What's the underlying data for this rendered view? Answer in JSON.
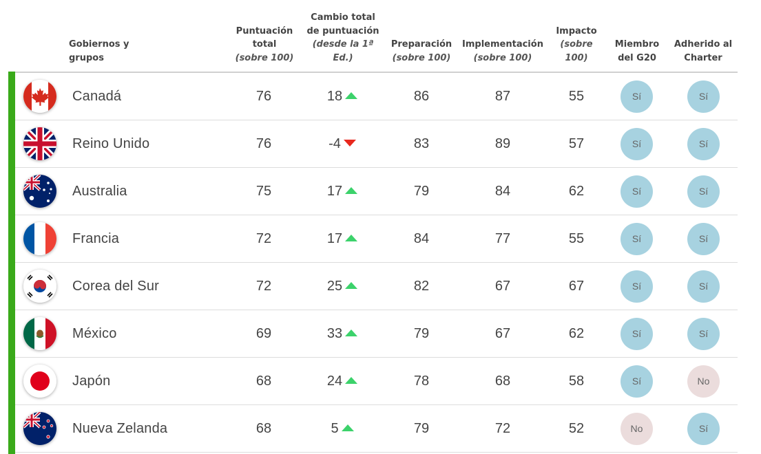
{
  "header": {
    "country": "Gobiernos y grupos",
    "total": [
      "Puntuación",
      "total",
      "(sobre 100)"
    ],
    "change": [
      "Cambio total",
      "de puntuación",
      "(desde la 1ª",
      "Ed.)"
    ],
    "prep": [
      "Preparación",
      "(sobre 100)"
    ],
    "impl": [
      "Implementación",
      "(sobre 100)"
    ],
    "impact": [
      "Impacto",
      "(sobre",
      "100)"
    ],
    "g20": [
      "Miembro",
      "del G20"
    ],
    "charter": [
      "Adherido al",
      "Charter"
    ]
  },
  "colors": {
    "accent_bar": "#3aaa1a",
    "up": "#3cd26b",
    "down": "#e8281e",
    "yes_badge": "#a7d2e0",
    "no_badge": "#ebdcdc"
  },
  "rows": [
    {
      "flag": "canada-flag-icon",
      "name": "Canadá",
      "total": "76",
      "change": "18",
      "dir": "up",
      "prep": "86",
      "impl": "87",
      "impact": "55",
      "g20": "Sí",
      "charter": "Sí"
    },
    {
      "flag": "uk-flag-icon",
      "name": "Reino Unido",
      "total": "76",
      "change": "-4",
      "dir": "down",
      "prep": "83",
      "impl": "89",
      "impact": "57",
      "g20": "Sí",
      "charter": "Sí"
    },
    {
      "flag": "australia-flag-icon",
      "name": "Australia",
      "total": "75",
      "change": "17",
      "dir": "up",
      "prep": "79",
      "impl": "84",
      "impact": "62",
      "g20": "Sí",
      "charter": "Sí"
    },
    {
      "flag": "france-flag-icon",
      "name": "Francia",
      "total": "72",
      "change": "17",
      "dir": "up",
      "prep": "84",
      "impl": "77",
      "impact": "55",
      "g20": "Sí",
      "charter": "Sí"
    },
    {
      "flag": "south-korea-flag-icon",
      "name": "Corea del Sur",
      "total": "72",
      "change": "25",
      "dir": "up",
      "prep": "82",
      "impl": "67",
      "impact": "67",
      "g20": "Sí",
      "charter": "Sí"
    },
    {
      "flag": "mexico-flag-icon",
      "name": "México",
      "total": "69",
      "change": "33",
      "dir": "up",
      "prep": "79",
      "impl": "67",
      "impact": "62",
      "g20": "Sí",
      "charter": "Sí"
    },
    {
      "flag": "japan-flag-icon",
      "name": "Japón",
      "total": "68",
      "change": "24",
      "dir": "up",
      "prep": "78",
      "impl": "68",
      "impact": "58",
      "g20": "Sí",
      "charter": "No"
    },
    {
      "flag": "new-zealand-flag-icon",
      "name": "Nueva Zelanda",
      "total": "68",
      "change": "5",
      "dir": "up",
      "prep": "79",
      "impl": "72",
      "impact": "52",
      "g20": "No",
      "charter": "Sí"
    }
  ]
}
